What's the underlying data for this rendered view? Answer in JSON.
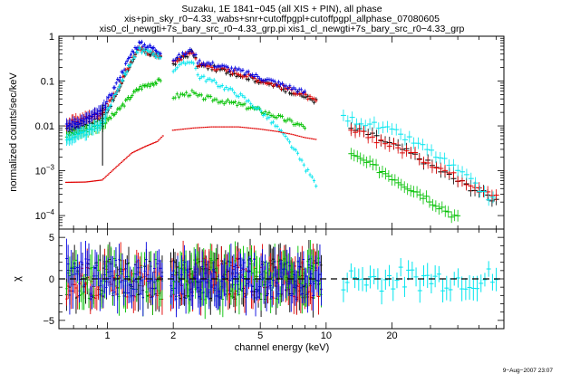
{
  "chart_data": [
    {
      "type": "scatter",
      "title_lines": [
        "Suzaku, 1E 1841−045 (all XIS + PIN), all phase",
        "xis+pin_sky_r0−4.33_wabs+snr+cutoffpgpl+cutoffpgpl_allphase_07080605",
        "xis0_cl_newgti+7s_bary_src_r0−4.33_grp.pi xis1_cl_newgti+7s_bary_src_r0−4.33_grp"
      ],
      "ylabel": "normalized counts/sec/keV",
      "xscale": "log",
      "yscale": "log",
      "xlim": [
        0.6,
        65
      ],
      "ylim": [
        5e-05,
        1
      ],
      "yticks": [
        {
          "value": 1,
          "label": "1"
        },
        {
          "value": 0.1,
          "label": "0.1"
        },
        {
          "value": 0.01,
          "label": "0.01"
        },
        {
          "value": 0.001,
          "label": "10",
          "exp": "−3"
        },
        {
          "value": 0.0001,
          "label": "10",
          "exp": "−4"
        }
      ],
      "series": [
        {
          "color": "#000000",
          "kind": "xis",
          "peak": 0.62,
          "tail10": 0.034,
          "soft": [
            [
              0.65,
              0.008
            ],
            [
              0.8,
              0.011
            ],
            [
              0.95,
              0.015
            ],
            [
              1.1,
              0.05
            ],
            [
              1.3,
              0.3
            ],
            [
              1.4,
              0.5
            ],
            [
              1.6,
              0.4
            ],
            [
              1.75,
              0.35
            ]
          ],
          "hard": [
            [
              2.0,
              0.25
            ],
            [
              2.45,
              0.45
            ],
            [
              2.6,
              0.22
            ],
            [
              3.0,
              0.2
            ],
            [
              4.0,
              0.14
            ],
            [
              5.0,
              0.1
            ],
            [
              6.0,
              0.075
            ],
            [
              7.0,
              0.058
            ],
            [
              8.0,
              0.045
            ],
            [
              9.0,
              0.036
            ]
          ],
          "pin": [
            [
              13,
              0.0085
            ],
            [
              15,
              0.0072
            ],
            [
              18,
              0.0048
            ],
            [
              22,
              0.0031
            ],
            [
              28,
              0.0017
            ],
            [
              34,
              0.00095
            ],
            [
              40,
              0.0006
            ],
            [
              50,
              0.00035
            ],
            [
              60,
              0.00022
            ]
          ]
        },
        {
          "color": "#e00000",
          "kind": "xis",
          "soft": [
            [
              0.65,
              0.011
            ],
            [
              0.8,
              0.015
            ],
            [
              0.95,
              0.02
            ],
            [
              1.1,
              0.06
            ],
            [
              1.3,
              0.32
            ],
            [
              1.4,
              0.52
            ],
            [
              1.6,
              0.42
            ],
            [
              1.75,
              0.36
            ]
          ],
          "hard": [
            [
              2.0,
              0.26
            ],
            [
              2.45,
              0.47
            ],
            [
              2.6,
              0.23
            ],
            [
              3.0,
              0.21
            ],
            [
              4.0,
              0.15
            ],
            [
              5.0,
              0.105
            ],
            [
              6.0,
              0.08
            ],
            [
              7.0,
              0.062
            ],
            [
              8.0,
              0.048
            ],
            [
              9.0,
              0.034
            ]
          ],
          "pin": [
            [
              13,
              0.0075
            ],
            [
              15,
              0.0064
            ],
            [
              18,
              0.0046
            ],
            [
              22,
              0.003
            ],
            [
              28,
              0.0018
            ],
            [
              34,
              0.0011
            ],
            [
              40,
              0.0007
            ],
            [
              50,
              0.00045
            ],
            [
              60,
              0.0003
            ]
          ]
        },
        {
          "color": "#00c000",
          "kind": "xis",
          "soft": [
            [
              0.65,
              0.006
            ],
            [
              0.8,
              0.008
            ],
            [
              0.95,
              0.011
            ],
            [
              1.1,
              0.02
            ],
            [
              1.3,
              0.05
            ],
            [
              1.4,
              0.07
            ],
            [
              1.6,
              0.09
            ],
            [
              1.75,
              0.1
            ]
          ],
          "hard": [
            [
              2.0,
              0.045
            ],
            [
              2.45,
              0.055
            ],
            [
              2.6,
              0.045
            ],
            [
              3.0,
              0.04
            ],
            [
              4.0,
              0.03
            ],
            [
              5.0,
              0.022
            ],
            [
              6.0,
              0.016
            ],
            [
              7.0,
              0.012
            ],
            [
              8.0,
              0.0095
            ]
          ],
          "pin": [
            [
              13,
              0.0022
            ],
            [
              15,
              0.0016
            ],
            [
              18,
              0.001
            ],
            [
              22,
              0.00055
            ],
            [
              28,
              0.00028
            ],
            [
              34,
              0.00015
            ],
            [
              40,
              9e-05
            ]
          ]
        },
        {
          "color": "#0000e0",
          "kind": "xis",
          "soft": [
            [
              0.65,
              0.01
            ],
            [
              0.8,
              0.014
            ],
            [
              0.95,
              0.022
            ],
            [
              1.1,
              0.09
            ],
            [
              1.3,
              0.45
            ],
            [
              1.4,
              0.7
            ],
            [
              1.6,
              0.55
            ],
            [
              1.75,
              0.45
            ]
          ],
          "hard": [
            [
              2.0,
              0.3
            ],
            [
              2.45,
              0.5
            ],
            [
              2.6,
              0.27
            ],
            [
              3.0,
              0.24
            ],
            [
              4.0,
              0.17
            ],
            [
              5.0,
              0.12
            ],
            [
              6.0,
              0.09
            ],
            [
              7.0,
              0.07
            ],
            [
              8.0,
              0.055
            ]
          ],
          "pin": []
        },
        {
          "color": "#00e5ee",
          "kind": "xis",
          "soft": [
            [
              0.65,
              0.005
            ],
            [
              0.8,
              0.007
            ],
            [
              0.95,
              0.012
            ],
            [
              1.1,
              0.06
            ],
            [
              1.3,
              0.3
            ],
            [
              1.4,
              0.5
            ],
            [
              1.6,
              0.42
            ],
            [
              1.75,
              0.35
            ]
          ],
          "hard": [
            [
              2.0,
              0.18
            ],
            [
              2.45,
              0.3
            ],
            [
              2.6,
              0.13
            ],
            [
              3.0,
              0.1
            ],
            [
              4.0,
              0.05
            ],
            [
              5.0,
              0.022
            ],
            [
              6.0,
              0.009
            ],
            [
              7.0,
              0.0035
            ],
            [
              8.0,
              0.0012
            ],
            [
              9.0,
              0.0005
            ]
          ],
          "pin": [
            [
              12,
              0.015
            ],
            [
              14,
              0.013
            ],
            [
              16,
              0.011
            ],
            [
              18,
              0.009
            ],
            [
              21,
              0.007
            ],
            [
              25,
              0.0045
            ],
            [
              30,
              0.0027
            ],
            [
              35,
              0.0016
            ],
            [
              42,
              0.00085
            ],
            [
              50,
              0.0004
            ],
            [
              58,
              0.00022
            ]
          ]
        },
        {
          "color": "#e00000",
          "kind": "model",
          "soft": [
            [
              0.65,
              0.00055
            ],
            [
              0.8,
              0.00056
            ],
            [
              0.95,
              0.00062
            ],
            [
              1.1,
              0.0012
            ],
            [
              1.3,
              0.0025
            ],
            [
              1.5,
              0.0035
            ],
            [
              1.7,
              0.0045
            ],
            [
              1.8,
              0.006
            ]
          ],
          "hard": [
            [
              2.0,
              0.008
            ],
            [
              2.5,
              0.009
            ],
            [
              3.0,
              0.0095
            ],
            [
              4.0,
              0.0095
            ],
            [
              5.0,
              0.0085
            ],
            [
              6.0,
              0.0075
            ],
            [
              7.0,
              0.0065
            ],
            [
              8.0,
              0.0055
            ],
            [
              9.0,
              0.005
            ]
          ],
          "pin": []
        }
      ]
    },
    {
      "type": "scatter",
      "xlabel": "channel energy (keV)",
      "ylabel": "χ",
      "xscale": "log",
      "xlim": [
        0.6,
        65
      ],
      "ylim": [
        -6,
        6
      ],
      "xticks": [
        {
          "value": 1,
          "label": "1"
        },
        {
          "value": 2,
          "label": "2"
        },
        {
          "value": 5,
          "label": "5"
        },
        {
          "value": 10,
          "label": "10"
        },
        {
          "value": 20,
          "label": "20"
        }
      ],
      "yticks": [
        {
          "value": 5,
          "label": "5"
        },
        {
          "value": 0,
          "label": "0"
        },
        {
          "value": -5,
          "label": "−5"
        }
      ],
      "reference_line": 0
    }
  ],
  "footer": {
    "timestamp": "9−Aug−2007 23:07"
  }
}
